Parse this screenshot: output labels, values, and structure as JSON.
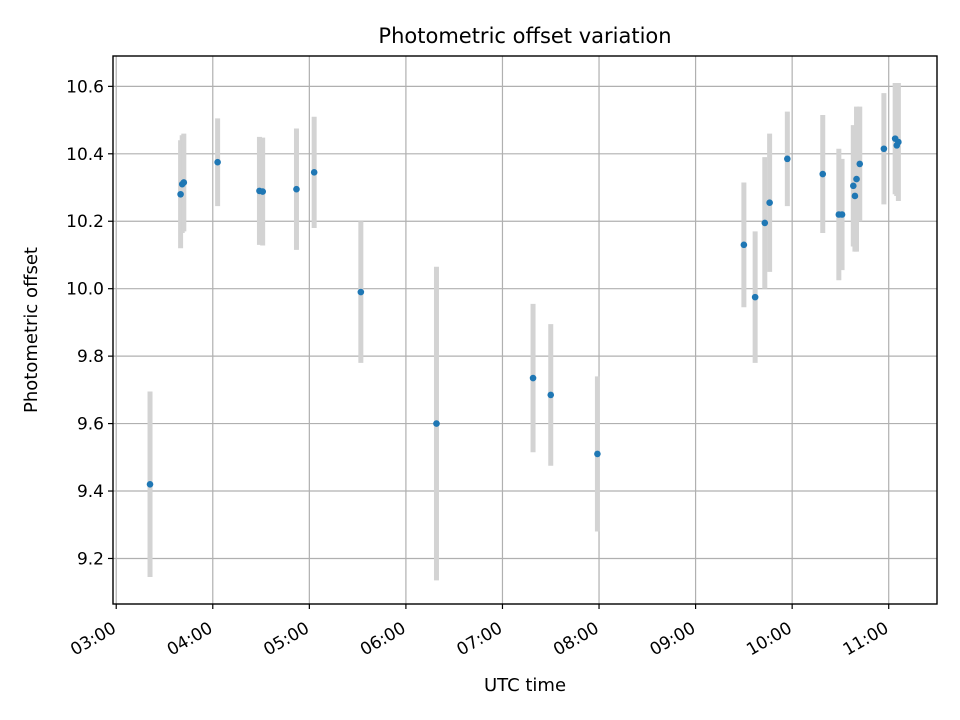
{
  "chart_data": {
    "type": "scatter",
    "title": "Photometric offset variation",
    "xlabel": "UTC time",
    "ylabel": "Photometric offset",
    "xlim": [
      "02:58",
      "11:30"
    ],
    "ylim": [
      9.065,
      10.69
    ],
    "grid": true,
    "x_ticks": [
      "03:00",
      "04:00",
      "05:00",
      "06:00",
      "07:00",
      "08:00",
      "09:00",
      "10:00",
      "11:00"
    ],
    "y_ticks": [
      "9.2",
      "9.4",
      "9.6",
      "9.8",
      "10.0",
      "10.2",
      "10.4",
      "10.6"
    ],
    "colors": {
      "points": "#1f77b4",
      "errorbars": "#d3d3d3",
      "grid": "#b0b0b0"
    },
    "series": [
      {
        "x": [
          "03:21",
          "03:40",
          "03:41",
          "03:42",
          "04:03",
          "04:29",
          "04:31",
          "04:52",
          "05:03",
          "05:32",
          "06:19",
          "07:19",
          "07:30",
          "07:59",
          "09:30",
          "09:37",
          "09:43",
          "09:46",
          "09:57",
          "10:19",
          "10:29",
          "10:31",
          "10:38",
          "10:39",
          "10:40",
          "10:42",
          "10:57",
          "11:04",
          "11:05",
          "11:06"
        ],
        "y": [
          9.42,
          10.28,
          10.31,
          10.315,
          10.375,
          10.29,
          10.288,
          10.295,
          10.345,
          9.99,
          9.6,
          9.735,
          9.685,
          9.51,
          10.13,
          9.975,
          10.195,
          10.255,
          10.385,
          10.34,
          10.22,
          10.22,
          10.305,
          10.275,
          10.325,
          10.37,
          10.415,
          10.445,
          10.425,
          10.435
        ],
        "yerr": [
          0.275,
          0.16,
          0.145,
          0.145,
          0.13,
          0.16,
          0.16,
          0.18,
          0.165,
          0.21,
          0.465,
          0.22,
          0.21,
          0.23,
          0.185,
          0.195,
          0.195,
          0.205,
          0.14,
          0.175,
          0.195,
          0.165,
          0.18,
          0.165,
          0.215,
          0.17,
          0.165,
          0.165,
          0.15,
          0.175
        ]
      }
    ]
  }
}
